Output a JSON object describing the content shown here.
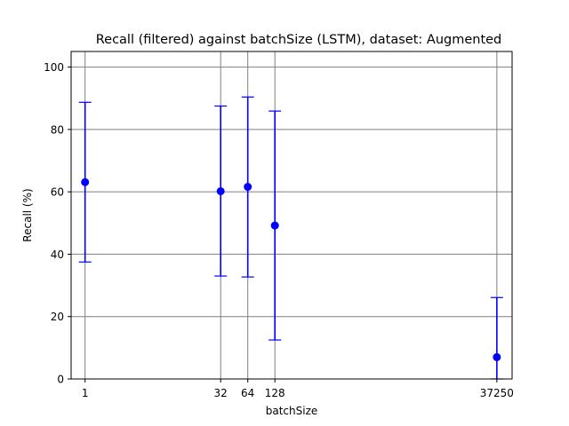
{
  "chart_data": {
    "type": "scatter",
    "title": "Recall (filtered) against batchSize (LSTM), dataset: Augmented",
    "xlabel": "batchSize",
    "ylabel": "Recall (%)",
    "x_scale": "log2",
    "xlim": [
      0.7,
      55000
    ],
    "ylim": [
      0,
      105
    ],
    "x_ticks": [
      1,
      32,
      64,
      128,
      37250
    ],
    "x_tick_labels": [
      "1",
      "32",
      "64",
      "128",
      "37250"
    ],
    "y_ticks": [
      0,
      20,
      40,
      60,
      80,
      100
    ],
    "y_tick_labels": [
      "0",
      "20",
      "40",
      "60",
      "80",
      "100"
    ],
    "grid": true,
    "color": "#0000ff",
    "series": [
      {
        "x": [
          1,
          32,
          64,
          128,
          37250
        ],
        "y": [
          63.1,
          60.2,
          61.6,
          49.2,
          7.0
        ],
        "err_low": [
          37.5,
          33.0,
          32.7,
          12.5,
          0
        ],
        "err_high": [
          88.7,
          87.5,
          90.4,
          85.9,
          26.1
        ]
      }
    ]
  }
}
